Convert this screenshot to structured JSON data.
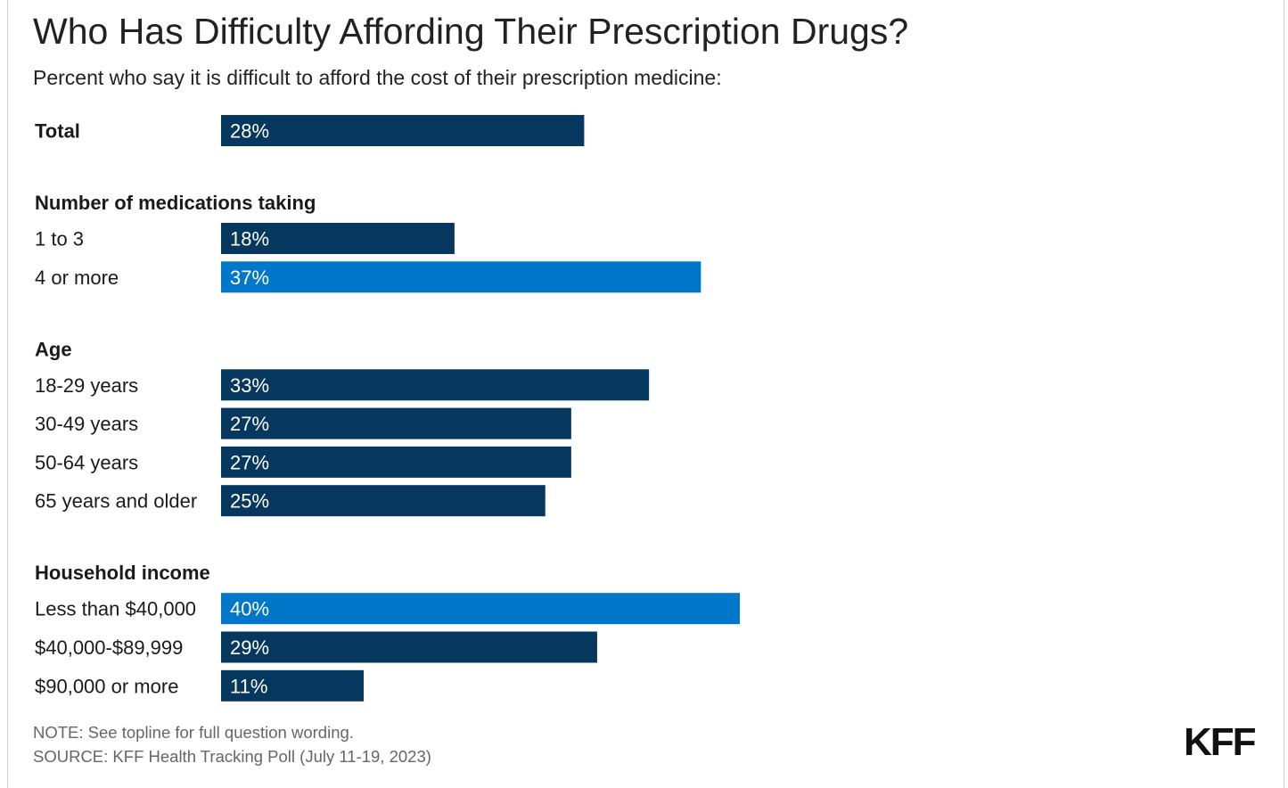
{
  "title": "Who Has Difficulty Affording Their Prescription Drugs?",
  "subtitle": "Percent who say it is difficult to afford the cost of their prescription medicine:",
  "note": "NOTE: See topline for full question wording.",
  "source": "SOURCE: KFF Health Tracking Poll (July 11-19, 2023)",
  "logo": "KFF",
  "colors": {
    "dark": "#06375e",
    "highlight": "#0077c8",
    "label": "#1a1a1a",
    "barText": "#ffffff"
  },
  "chart_data": {
    "type": "bar",
    "orientation": "horizontal",
    "title": "Who Has Difficulty Affording Their Prescription Drugs?",
    "subtitle": "Percent who say it is difficult to afford the cost of their prescription medicine:",
    "value_suffix": "%",
    "groups": [
      {
        "heading": "",
        "rows": [
          {
            "label": "Total",
            "value": 28,
            "bold": true,
            "highlight": false
          }
        ]
      },
      {
        "heading": "Number of medications taking",
        "rows": [
          {
            "label": "1 to 3",
            "value": 18,
            "highlight": false
          },
          {
            "label": "4 or more",
            "value": 37,
            "highlight": true
          }
        ]
      },
      {
        "heading": "Age",
        "rows": [
          {
            "label": "18-29 years",
            "value": 33,
            "highlight": false
          },
          {
            "label": "30-49 years",
            "value": 27,
            "highlight": false
          },
          {
            "label": "50-64 years",
            "value": 27,
            "highlight": false
          },
          {
            "label": "65 years and older",
            "value": 25,
            "highlight": false
          }
        ]
      },
      {
        "heading": "Household income",
        "rows": [
          {
            "label": "Less than $40,000",
            "value": 40,
            "highlight": true
          },
          {
            "label": "$40,000-$89,999",
            "value": 29,
            "highlight": false
          },
          {
            "label": "$90,000 or more",
            "value": 11,
            "highlight": false
          }
        ]
      }
    ]
  }
}
